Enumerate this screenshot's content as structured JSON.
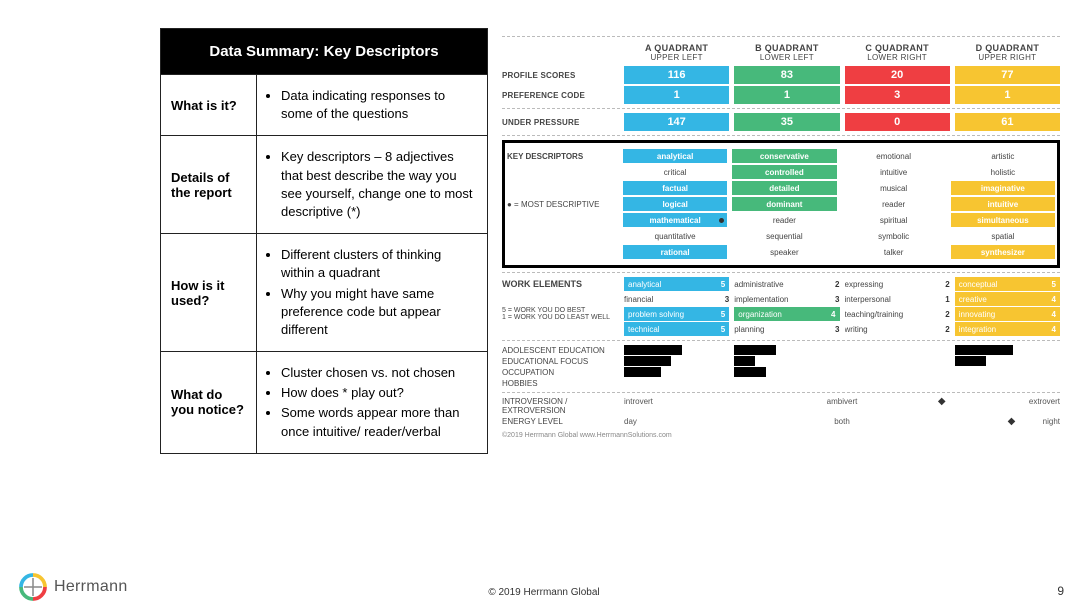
{
  "colors": {
    "A": "#34b6e4",
    "B": "#47b97b",
    "C": "#ef3e42",
    "D": "#f7c531",
    "header_bg": "#000000",
    "text": "#333333",
    "dash": "#bbbbbb"
  },
  "desc": {
    "title": "Data Summary: Key Descriptors",
    "rows": [
      {
        "label": "What is it?",
        "bullets": [
          "Data indicating responses to some of the questions"
        ]
      },
      {
        "label": "Details of the report",
        "bullets": [
          "Key descriptors – 8 adjectives that best describe the way you see yourself, change one to most descriptive (*)"
        ]
      },
      {
        "label": "How is it used?",
        "bullets": [
          "Different clusters of thinking within a quadrant",
          "Why you might have same preference code but appear different"
        ]
      },
      {
        "label": "What do you notice?",
        "bullets": [
          "Cluster chosen vs. not chosen",
          "How does * play out?",
          "Some words appear more than once intuitive/ reader/verbal"
        ]
      }
    ]
  },
  "quadrants": [
    {
      "key": "A",
      "title": "A QUADRANT",
      "sub": "UPPER LEFT"
    },
    {
      "key": "B",
      "title": "B QUADRANT",
      "sub": "LOWER LEFT"
    },
    {
      "key": "C",
      "title": "C QUADRANT",
      "sub": "LOWER RIGHT"
    },
    {
      "key": "D",
      "title": "D QUADRANT",
      "sub": "UPPER RIGHT"
    }
  ],
  "profile_scores_label": "PROFILE SCORES",
  "preference_code_label": "PREFERENCE CODE",
  "under_pressure_label": "UNDER PRESSURE",
  "profile_scores": {
    "A": 116,
    "B": 83,
    "C": 20,
    "D": 77
  },
  "preference_code": {
    "A": 1,
    "B": 1,
    "C": 3,
    "D": 1
  },
  "under_pressure": {
    "A": 147,
    "B": 35,
    "C": 0,
    "D": 61
  },
  "key_descriptors_label": "KEY DESCRIPTORS",
  "most_descriptive_label": "● = MOST DESCRIPTIVE",
  "key_descriptors": [
    [
      {
        "t": "analytical",
        "hi": true
      },
      {
        "t": "conservative",
        "hi": true
      },
      {
        "t": "emotional",
        "hi": false
      },
      {
        "t": "artistic",
        "hi": false
      }
    ],
    [
      {
        "t": "critical",
        "hi": false
      },
      {
        "t": "controlled",
        "hi": true
      },
      {
        "t": "intuitive",
        "hi": false
      },
      {
        "t": "holistic",
        "hi": false
      }
    ],
    [
      {
        "t": "factual",
        "hi": true
      },
      {
        "t": "detailed",
        "hi": true
      },
      {
        "t": "musical",
        "hi": false
      },
      {
        "t": "imaginative",
        "hi": true
      }
    ],
    [
      {
        "t": "logical",
        "hi": true
      },
      {
        "t": "dominant",
        "hi": true
      },
      {
        "t": "reader",
        "hi": false
      },
      {
        "t": "intuitive",
        "hi": true
      }
    ],
    [
      {
        "t": "mathematical",
        "hi": true,
        "dot": true
      },
      {
        "t": "reader",
        "hi": false
      },
      {
        "t": "spiritual",
        "hi": false
      },
      {
        "t": "simultaneous",
        "hi": true
      }
    ],
    [
      {
        "t": "quantitative",
        "hi": false
      },
      {
        "t": "sequential",
        "hi": false
      },
      {
        "t": "symbolic",
        "hi": false
      },
      {
        "t": "spatial",
        "hi": false
      }
    ],
    [
      {
        "t": "rational",
        "hi": true
      },
      {
        "t": "speaker",
        "hi": false
      },
      {
        "t": "talker",
        "hi": false
      },
      {
        "t": "synthesizer",
        "hi": true
      }
    ]
  ],
  "work_elements_label": "WORK ELEMENTS",
  "work_elements_note": "5 = WORK YOU DO BEST\n1 = WORK YOU DO LEAST WELL",
  "work_elements": [
    [
      {
        "t": "analytical",
        "v": 5,
        "hi": true
      },
      {
        "t": "administrative",
        "v": 2,
        "hi": false
      },
      {
        "t": "expressing",
        "v": 2,
        "hi": false
      },
      {
        "t": "conceptual",
        "v": 5,
        "hi": true
      }
    ],
    [
      {
        "t": "financial",
        "v": 3,
        "hi": false
      },
      {
        "t": "implementation",
        "v": 3,
        "hi": false
      },
      {
        "t": "interpersonal",
        "v": 1,
        "hi": false
      },
      {
        "t": "creative",
        "v": 4,
        "hi": true
      }
    ],
    [
      {
        "t": "problem solving",
        "v": 5,
        "hi": true
      },
      {
        "t": "organization",
        "v": 4,
        "hi": true
      },
      {
        "t": "teaching/training",
        "v": 2,
        "hi": false
      },
      {
        "t": "innovating",
        "v": 4,
        "hi": true
      }
    ],
    [
      {
        "t": "technical",
        "v": 5,
        "hi": true
      },
      {
        "t": "planning",
        "v": 3,
        "hi": false
      },
      {
        "t": "writing",
        "v": 2,
        "hi": false
      },
      {
        "t": "integration",
        "v": 4,
        "hi": true
      }
    ]
  ],
  "bottom_labels": [
    "ADOLESCENT EDUCATION",
    "EDUCATIONAL FOCUS",
    "OCCUPATION",
    "HOBBIES"
  ],
  "bottom_bars": [
    {
      "A": 0.55,
      "B": 0.4,
      "C": 0.0,
      "D": 0.55
    },
    {
      "A": 0.45,
      "B": 0.2,
      "C": 0.0,
      "D": 0.3
    },
    {
      "A": 0.35,
      "B": 0.3,
      "C": 0.0,
      "D": 0.0
    },
    {
      "A": 0.0,
      "B": 0.0,
      "C": 0.0,
      "D": 0.0
    }
  ],
  "scales": {
    "introversion": {
      "label": "INTROVERSION /\nEXTROVERSION",
      "left": "introvert",
      "mid": "ambivert",
      "right": "extrovert",
      "pos": 0.72
    },
    "energy": {
      "label": "ENERGY LEVEL",
      "left": "day",
      "mid": "both",
      "right": "night",
      "pos": 0.88
    }
  },
  "footer": {
    "copyright": "© 2019 Herrmann Global",
    "page": "9",
    "brand": "Herrmann",
    "fineprint": "©2019 Herrmann Global   www.HerrmannSolutions.com"
  }
}
